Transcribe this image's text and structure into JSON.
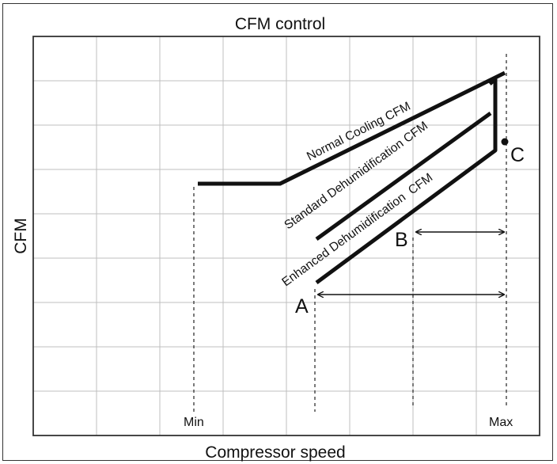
{
  "title": "CFM control",
  "xlabel": "Compressor speed",
  "ylabel": "CFM",
  "lines": {
    "normal": "Normal Cooling CFM",
    "standard": "Standard Dehumidification CFM",
    "enhanced": "Enhanced Dehumidification  CFM"
  },
  "marks": {
    "min": "Min",
    "max": "Max"
  },
  "points": {
    "a": "A",
    "b": "B",
    "c": "C"
  },
  "colors": {
    "line": "#111111",
    "grid": "#bfbfbf",
    "border": "#333333"
  }
}
